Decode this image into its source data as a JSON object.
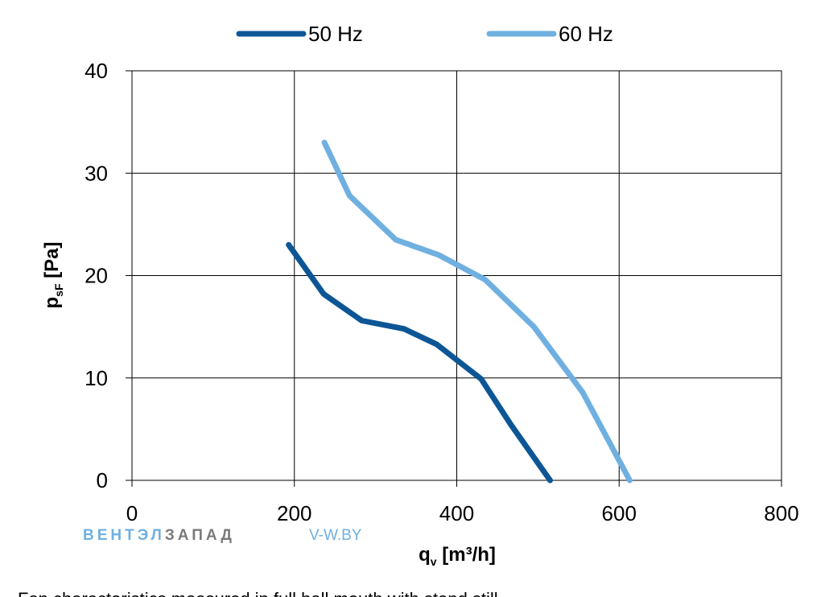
{
  "chart_data": {
    "type": "line",
    "xlabel": {
      "main": "q",
      "sub": "v",
      "tail": " [m³/h]"
    },
    "ylabel": {
      "main": "p",
      "sub": "sF",
      "tail": " [Pa]"
    },
    "xlim": [
      0,
      800
    ],
    "ylim": [
      0,
      40
    ],
    "x_ticks": [
      0,
      200,
      400,
      600,
      800
    ],
    "y_ticks": [
      0,
      10,
      20,
      30,
      40
    ],
    "x_tick_labels": [
      "0",
      "200",
      "400",
      "600",
      "800"
    ],
    "y_tick_labels": [
      "0",
      "10",
      "20",
      "30",
      "40"
    ],
    "grid": true,
    "legend_position": "top-center",
    "series": [
      {
        "name": "50 Hz",
        "color": "#0d5696",
        "points": [
          [
            193,
            23.0
          ],
          [
            236,
            18.2
          ],
          [
            283,
            15.6
          ],
          [
            335,
            14.8
          ],
          [
            375,
            13.3
          ],
          [
            430,
            9.9
          ],
          [
            467,
            5.4
          ],
          [
            515,
            0.0
          ]
        ]
      },
      {
        "name": "60 Hz",
        "color": "#6fb0e0",
        "points": [
          [
            237,
            33.0
          ],
          [
            268,
            27.8
          ],
          [
            325,
            23.5
          ],
          [
            378,
            22.0
          ],
          [
            435,
            19.6
          ],
          [
            495,
            15.0
          ],
          [
            555,
            8.6
          ],
          [
            613,
            0.0
          ]
        ]
      }
    ]
  },
  "watermark": {
    "part1": "ВЕНТЭЛ",
    "part2": "ЗАПАД",
    "url": "V-W.BY",
    "color1": "#6fb0e0",
    "color2": "#7a7a7a"
  },
  "caption": "Fan characteristics measured in full ball mouth with stand still"
}
